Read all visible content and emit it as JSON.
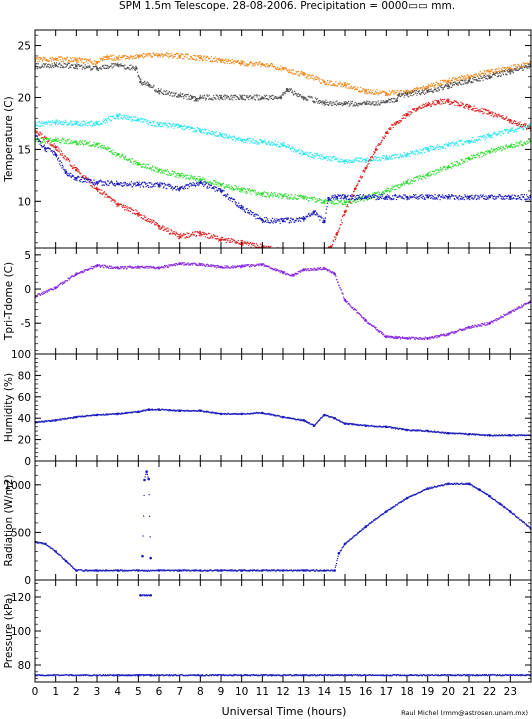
{
  "title": "SPM 1.5m Telescope. 28-08-2006. Precipitation = 0000▭▭ mm.",
  "xlabel": "Universal Time (hours)",
  "credit": "Raul Michel (rmm@astrosen.unam.mx)",
  "x_ticks": [
    "0",
    "1",
    "2",
    "3",
    "4",
    "5",
    "6",
    "7",
    "8",
    "9",
    "10",
    "11",
    "12",
    "13",
    "14",
    "15",
    "16",
    "17",
    "18",
    "19",
    "20",
    "21",
    "22",
    "23"
  ],
  "colors": {
    "orange": "#f08a1e",
    "gray": "#555555",
    "cyan": "#2ee6ee",
    "red": "#e02020",
    "green": "#33dd33",
    "blue": "#1e1ebe",
    "purple": "#8a2be2"
  },
  "chart_data": [
    {
      "type": "scatter",
      "ylabel": "Temperature (C)",
      "xlim": [
        0,
        24
      ],
      "ylim": [
        5.5,
        26.5
      ],
      "y_ticks": [
        10,
        15,
        20,
        25
      ],
      "series": [
        {
          "color": "orange",
          "x": [
            0,
            1,
            2,
            3,
            3.5,
            4,
            5,
            6,
            7,
            8,
            9,
            10,
            11,
            12,
            13,
            14,
            15,
            16,
            17,
            18,
            19,
            20,
            21,
            22,
            23,
            24
          ],
          "y": [
            23.6,
            23.7,
            23.6,
            23.4,
            23.9,
            23.8,
            24.0,
            24.1,
            24.0,
            23.8,
            23.6,
            23.3,
            23.2,
            22.8,
            22.2,
            21.5,
            21.2,
            20.6,
            20.4,
            20.5,
            21.0,
            21.6,
            22.0,
            22.5,
            22.8,
            23.3
          ]
        },
        {
          "color": "gray",
          "x": [
            0,
            1,
            2,
            3,
            4,
            4.9,
            5.1,
            5.5,
            6,
            7,
            7.6,
            7.8,
            8,
            9,
            10,
            11,
            11.9,
            12.2,
            13,
            14,
            15,
            16,
            17,
            17.5,
            17.6,
            18,
            19,
            20,
            21,
            22,
            23,
            24
          ],
          "y": [
            23.0,
            23.1,
            23.0,
            22.8,
            23.1,
            22.8,
            21.5,
            21.2,
            20.6,
            20.2,
            20.0,
            19.8,
            20.0,
            20.0,
            20.0,
            20.0,
            20.0,
            20.8,
            20.0,
            19.5,
            19.4,
            19.4,
            19.6,
            19.7,
            20.2,
            20.3,
            20.6,
            21.1,
            21.6,
            22.0,
            22.5,
            23.1
          ]
        },
        {
          "color": "cyan",
          "x": [
            0,
            1,
            2,
            3,
            4,
            5,
            6,
            7,
            8,
            9,
            10,
            11,
            12,
            13,
            14,
            15,
            16,
            17,
            18,
            19,
            20,
            21,
            22,
            23,
            24
          ],
          "y": [
            17.4,
            17.6,
            17.5,
            17.5,
            18.2,
            17.8,
            17.4,
            17.2,
            16.8,
            16.4,
            15.9,
            15.7,
            15.4,
            14.6,
            14.2,
            13.9,
            14.0,
            14.2,
            14.5,
            15.0,
            15.4,
            15.8,
            16.3,
            16.8,
            17.3
          ]
        },
        {
          "color": "red",
          "x": [
            0,
            1,
            2,
            3,
            4,
            5,
            6,
            7,
            8,
            9,
            10,
            11,
            12,
            13,
            14,
            14.3,
            14.6,
            15,
            15.5,
            16,
            16.5,
            17,
            17.5,
            18,
            18.5,
            19,
            19.5,
            20,
            21,
            22,
            23,
            24
          ],
          "y": [
            16.8,
            15.2,
            13.0,
            11.2,
            9.7,
            8.8,
            7.6,
            6.6,
            6.9,
            6.3,
            6.0,
            5.6,
            5.2,
            5.1,
            5.2,
            5.6,
            6.8,
            9.0,
            11.2,
            13.2,
            15.0,
            16.6,
            17.6,
            18.3,
            18.9,
            19.3,
            19.6,
            19.6,
            19.1,
            18.5,
            17.8,
            17.0
          ]
        },
        {
          "color": "green",
          "x": [
            0,
            1,
            2,
            3,
            4,
            5,
            6,
            7,
            8,
            9,
            10,
            11,
            12,
            13,
            14,
            15,
            16,
            17,
            18,
            19,
            20,
            21,
            22,
            23,
            24
          ],
          "y": [
            15.8,
            15.9,
            15.7,
            15.5,
            14.5,
            13.6,
            13.0,
            12.5,
            12.1,
            11.6,
            11.1,
            10.7,
            10.5,
            10.3,
            10.0,
            9.9,
            10.3,
            11.0,
            11.8,
            12.5,
            13.3,
            14.1,
            14.8,
            15.3,
            15.8
          ]
        },
        {
          "color": "blue",
          "x": [
            0,
            0.5,
            1,
            1.5,
            2,
            3,
            4,
            5,
            6,
            7,
            8,
            9,
            10,
            11,
            12,
            13,
            13.5,
            14,
            14.2,
            14.6,
            15,
            16,
            17,
            18,
            19,
            20,
            21,
            22,
            23,
            24
          ],
          "y": [
            16.3,
            15.1,
            14.5,
            12.8,
            12.2,
            11.8,
            11.7,
            11.6,
            11.6,
            11.2,
            11.8,
            11.0,
            9.4,
            8.2,
            8.1,
            8.3,
            9.0,
            8.0,
            10.3,
            10.4,
            10.4,
            10.4,
            10.4,
            10.4,
            10.4,
            10.4,
            10.4,
            10.4,
            10.4,
            10.4
          ]
        }
      ]
    },
    {
      "type": "scatter",
      "ylabel": "Tpri-Tdome (C)",
      "xlim": [
        0,
        24
      ],
      "ylim": [
        -9.5,
        6
      ],
      "y_ticks": [
        -5,
        0,
        5
      ],
      "series": [
        {
          "color": "purple",
          "x": [
            0,
            1,
            2,
            3,
            4,
            5,
            6,
            7,
            8,
            9,
            10,
            11,
            12,
            12.5,
            13,
            14,
            14.5,
            15,
            16,
            17,
            17.5,
            18,
            19,
            20,
            21,
            22,
            23,
            24
          ],
          "y": [
            -1.1,
            0.2,
            2.2,
            3.4,
            3.1,
            3.2,
            3.1,
            3.7,
            3.6,
            3.2,
            3.3,
            3.6,
            2.4,
            2.0,
            2.8,
            3.0,
            2.2,
            -1.6,
            -4.6,
            -7.0,
            -7.1,
            -7.2,
            -7.2,
            -6.6,
            -5.6,
            -5.0,
            -3.4,
            -1.8
          ]
        }
      ]
    },
    {
      "type": "scatter",
      "ylabel": "Humidity (%)",
      "xlim": [
        0,
        24
      ],
      "ylim": [
        0,
        100
      ],
      "y_ticks": [
        0,
        20,
        40,
        60,
        80,
        100
      ],
      "series": [
        {
          "color": "blue",
          "x": [
            0,
            1,
            2,
            3,
            4,
            5,
            5.5,
            6,
            7,
            8,
            9,
            10,
            11,
            12,
            13,
            13.5,
            14,
            14.5,
            15,
            16,
            17,
            18,
            19,
            20,
            21,
            22,
            23,
            24
          ],
          "y": [
            36,
            38,
            41,
            43,
            44,
            46,
            48,
            48,
            47,
            47,
            44,
            44,
            45,
            41,
            38,
            33,
            43,
            40,
            35,
            33,
            32,
            29,
            28,
            26,
            25,
            24,
            24,
            24
          ]
        }
      ]
    },
    {
      "type": "scatter",
      "ylabel": "Radiation (W/m2)",
      "xlim": [
        0,
        24
      ],
      "ylim": [
        0,
        1250
      ],
      "y_ticks": [
        0,
        500,
        1000
      ],
      "series": [
        {
          "color": "blue",
          "x": [
            0,
            0.5,
            1,
            1.5,
            2,
            3,
            4,
            5,
            6,
            7,
            8,
            9,
            10,
            11,
            12,
            13,
            14,
            14.5,
            14.7,
            15,
            16,
            17,
            18,
            19,
            20,
            21,
            21.5,
            22,
            22.5,
            23,
            24
          ],
          "y": [
            400,
            380,
            300,
            200,
            100,
            100,
            100,
            100,
            100,
            100,
            100,
            100,
            100,
            100,
            100,
            100,
            100,
            100,
            280,
            380,
            560,
            720,
            860,
            960,
            1010,
            1010,
            950,
            880,
            800,
            720,
            540
          ]
        },
        {
          "color": "blue",
          "x": [
            5.2,
            5.3,
            5.4,
            5.5,
            5.6
          ],
          "y": [
            250,
            1050,
            1140,
            1060,
            230
          ]
        }
      ]
    },
    {
      "type": "scatter",
      "ylabel": "Pressure (kPa)",
      "xlim": [
        0,
        24
      ],
      "ylim": [
        70,
        130
      ],
      "y_ticks": [
        80,
        100,
        120
      ],
      "series": [
        {
          "color": "blue",
          "x": [
            0,
            5,
            5.6,
            24
          ],
          "y": [
            74,
            74,
            74,
            74
          ]
        },
        {
          "color": "blue",
          "x": [
            5.1,
            5.6
          ],
          "y": [
            121,
            121
          ]
        }
      ]
    }
  ]
}
